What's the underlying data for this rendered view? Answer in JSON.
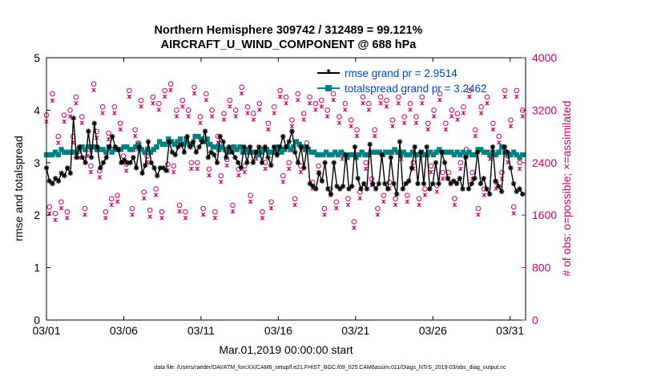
{
  "chart_data": {
    "type": "line",
    "title": [
      "Northern Hemisphere 309742 / 312489 = 99.121%",
      "AIRCRAFT_U_WIND_COMPONENT @ 688 hPa"
    ],
    "xlabel": "Mar.01,2019 00:00:00 start",
    "ylabel_left": "rmse and totalspread",
    "ylabel_right": "# of obs: o=possible; ×=assimilated",
    "footer": "data file: /Users/raeder/DAI/ATM_forcXX/CAM6_setup/f.e21.FHIST_BGC.f09_025.CAM6assim.011/Diags_NTrS_2019-03/obs_diag_output.nc",
    "x_ticks": [
      1,
      6,
      11,
      16,
      21,
      26,
      31
    ],
    "x_tick_labels": [
      "03/01",
      "03/06",
      "03/11",
      "03/16",
      "03/21",
      "03/26",
      "03/31"
    ],
    "xlim": [
      1,
      32
    ],
    "ylim_left": [
      0,
      5
    ],
    "yticks_left": [
      "0",
      "1",
      "2",
      "3",
      "4",
      "5"
    ],
    "ylim_right": [
      0,
      4000
    ],
    "yticks_right": [
      "0",
      "800",
      "1600",
      "2400",
      "3200",
      "4000"
    ],
    "colors": {
      "rmse": "#000000",
      "spread": "#008080",
      "obs": "#cc0066",
      "legend_text": "#0044cc",
      "right_axis": "#cc0066"
    },
    "legend": [
      {
        "name": "rmse grand pr = 2.9514"
      },
      {
        "name": "totalspread grand pr = 3.2462"
      }
    ],
    "series": [
      {
        "name": "rmse",
        "values": [
          2.9,
          2.65,
          2.6,
          2.7,
          2.65,
          2.8,
          2.75,
          2.9,
          2.8,
          3.85,
          3.1,
          3.3,
          3.1,
          3.0,
          3.6,
          3.1,
          3.75,
          3.3,
          2.9,
          3.0,
          3.1,
          3.3,
          3.5,
          3.3,
          3.25,
          3.0,
          3.05,
          3.0,
          3.0,
          3.1,
          2.9,
          3.3,
          2.8,
          2.95,
          3.4,
          3.0,
          2.9,
          2.75,
          2.9,
          2.9,
          2.85,
          3.4,
          3.2,
          3.15,
          3.3,
          3.35,
          3.2,
          3.5,
          3.3,
          3.4,
          3.2,
          3.3,
          3.4,
          3.6,
          3.1,
          3.2,
          3.15,
          3.0,
          3.5,
          3.4,
          3.1,
          3.3,
          3.2,
          3.1,
          3.0,
          2.9,
          3.3,
          3.0,
          3.3,
          3.0,
          3.2,
          3.3,
          3.0,
          3.3,
          3.1,
          2.95,
          3.3,
          3.15,
          3.3,
          3.5,
          3.3,
          3.4,
          3.6,
          3.2,
          3.0,
          3.3,
          2.9,
          3.3,
          2.6,
          2.55,
          2.5,
          2.8,
          2.65,
          3.0,
          2.5,
          2.4,
          3.0,
          2.55,
          2.5,
          2.55,
          3.15,
          2.5,
          2.55,
          3.3,
          2.7,
          2.5,
          2.6,
          2.5,
          3.35,
          2.6,
          2.5,
          2.6,
          3.15,
          2.6,
          2.5,
          3.1,
          2.6,
          2.4,
          3.4,
          2.5,
          2.6,
          2.65,
          2.9,
          3.3,
          2.6,
          3.2,
          2.6,
          3.3,
          2.5,
          2.6,
          3.0,
          2.6,
          3.2,
          3.0,
          2.7,
          2.6,
          2.65,
          2.6,
          2.7,
          2.5,
          3.1,
          2.5,
          2.6,
          2.7,
          3.2,
          2.6,
          2.7,
          2.5,
          2.4,
          3.3,
          2.65,
          2.55,
          2.45,
          3.3,
          3.2,
          2.9,
          2.6,
          2.45,
          2.5,
          2.4
        ]
      },
      {
        "name": "totalspread",
        "values": [
          3.15,
          3.15,
          3.15,
          3.2,
          3.15,
          3.25,
          3.2,
          3.2,
          3.2,
          3.2,
          3.2,
          3.25,
          3.3,
          3.25,
          3.3,
          3.3,
          3.3,
          3.25,
          3.25,
          3.25,
          3.2,
          3.3,
          3.2,
          3.25,
          3.25,
          3.25,
          3.3,
          3.3,
          3.25,
          3.25,
          3.3,
          3.35,
          3.25,
          3.2,
          3.25,
          3.2,
          3.25,
          3.3,
          3.4,
          3.35,
          3.35,
          3.45,
          3.4,
          3.35,
          3.4,
          3.45,
          3.35,
          3.45,
          3.35,
          3.35,
          3.5,
          3.5,
          3.45,
          3.4,
          3.45,
          3.35,
          3.3,
          3.3,
          3.25,
          3.3,
          3.25,
          3.2,
          3.25,
          3.3,
          3.25,
          3.3,
          3.2,
          3.25,
          3.2,
          3.2,
          3.2,
          3.15,
          3.2,
          3.25,
          3.25,
          3.2,
          3.2,
          3.25,
          3.3,
          3.2,
          3.25,
          3.3,
          3.25,
          3.3,
          3.4,
          3.35,
          3.3,
          3.25,
          3.25,
          3.2,
          3.2,
          3.15,
          3.15,
          3.15,
          3.2,
          3.15,
          3.15,
          3.2,
          3.15,
          3.2,
          3.15,
          3.1,
          3.15,
          3.15,
          3.1,
          3.15,
          3.2,
          3.15,
          3.15,
          3.2,
          3.2,
          3.2,
          3.2,
          3.15,
          3.2,
          3.2,
          3.2,
          3.25,
          3.2,
          3.15,
          3.2,
          3.15,
          3.15,
          3.2,
          3.15,
          3.15,
          3.2,
          3.15,
          3.15,
          3.2,
          3.15,
          3.2,
          3.25,
          3.2,
          3.2,
          3.2,
          3.2,
          3.15,
          3.2,
          3.15,
          3.2,
          3.15,
          3.2,
          3.15,
          3.15,
          3.25,
          3.25,
          3.2,
          3.2,
          3.15,
          3.2,
          3.15,
          3.2,
          3.3,
          3.2,
          3.15,
          3.15,
          3.2,
          3.15,
          3.1,
          3.15
        ]
      },
      {
        "name": "obs_possible",
        "axis": "right",
        "values": [
          3125,
          1725,
          3450,
          1625,
          2800,
          1800,
          3125,
          1650,
          3200,
          2800,
          3400,
          2575,
          3100,
          1700,
          2600,
          2350,
          3600,
          2875,
          2275,
          3250,
          1650,
          2850,
          1850,
          3250,
          1900,
          3000,
          2500,
          2375,
          3500,
          1700,
          2900,
          2700,
          3350,
          1950,
          2500,
          1675,
          3400,
          2000,
          3300,
          1650,
          3500,
          2375,
          3600,
          2350,
          3200,
          1750,
          3350,
          1650,
          3200,
          2400,
          3550,
          2400,
          3100,
          1700,
          3450,
          2300,
          3200,
          1650,
          2800,
          2200,
          3150,
          2450,
          3350,
          1750,
          3200,
          2300,
          3550,
          2350,
          3250,
          1900,
          3150,
          2550,
          3300,
          1650,
          2400,
          3000,
          1800,
          3250,
          2600,
          3500,
          2200,
          3400,
          2400,
          3050,
          1850,
          3450,
          2350,
          3150,
          2700,
          3400,
          2100,
          3300,
          2350,
          3350,
          1700,
          3200,
          2000,
          3450,
          1800,
          3100,
          2550,
          3300,
          1850,
          3050,
          1500,
          2900,
          1950,
          3400,
          2400,
          3300,
          2150,
          2900,
          1700,
          3400,
          1900,
          3350,
          2100,
          3050,
          1850,
          3400,
          2550,
          3100,
          1900,
          3300,
          2400,
          3100,
          1850,
          3400,
          2000,
          3000,
          2350,
          3200,
          2050,
          3450,
          2250,
          3000,
          2250,
          3200,
          1850,
          3150,
          2400,
          3250,
          2600,
          3500,
          2250,
          2900,
          1700,
          3250,
          2000,
          3400,
          2550,
          3000,
          2100,
          2800,
          2250,
          3500,
          2500,
          3050,
          1725,
          3500,
          2400,
          3200
        ]
      },
      {
        "name": "obs_assimilated",
        "axis": "right",
        "values": [
          3100,
          1700,
          3420,
          1600,
          2775,
          1780,
          3100,
          1630,
          3180,
          2780,
          3380,
          2550,
          3080,
          1680,
          2580,
          2330,
          3580,
          2850,
          2250,
          3230,
          1630,
          2830,
          1830,
          3230,
          1880,
          2980,
          2480,
          2350,
          3480,
          1680,
          2880,
          2680,
          3330,
          1930,
          2480,
          1650,
          3380,
          1980,
          3280,
          1630,
          3480,
          2350,
          3580,
          2330,
          3180,
          1730,
          3330,
          1630,
          3180,
          2380,
          3530,
          2380,
          3080,
          1680,
          3430,
          2280,
          3180,
          1630,
          2780,
          2180,
          3130,
          2430,
          3330,
          1730,
          3180,
          2280,
          3530,
          2330,
          3230,
          1880,
          3130,
          2530,
          3280,
          1630,
          2380,
          2980,
          1780,
          3230,
          2580,
          3480,
          2180,
          3380,
          2380,
          3030,
          1830,
          3430,
          2330,
          3130,
          2680,
          3380,
          2080,
          3280,
          2330,
          3330,
          1680,
          3180,
          1980,
          3430,
          1780,
          3080,
          2530,
          3280,
          1830,
          3030,
          1480,
          2880,
          1930,
          3380,
          2380,
          3280,
          2130,
          2880,
          1680,
          3380,
          1880,
          3330,
          2080,
          3030,
          1830,
          3380,
          2530,
          3080,
          1880,
          3280,
          2380,
          3080,
          1830,
          3380,
          1980,
          2980,
          2330,
          3180,
          2030,
          3430,
          2230,
          2980,
          2230,
          3180,
          1830,
          3130,
          2380,
          3230,
          2580,
          3480,
          2230,
          2880,
          1680,
          3230,
          1980,
          3380,
          2530,
          2980,
          2080,
          2780,
          2230,
          3480,
          2480,
          3030,
          1700,
          3480,
          2380,
          3180
        ]
      }
    ]
  }
}
